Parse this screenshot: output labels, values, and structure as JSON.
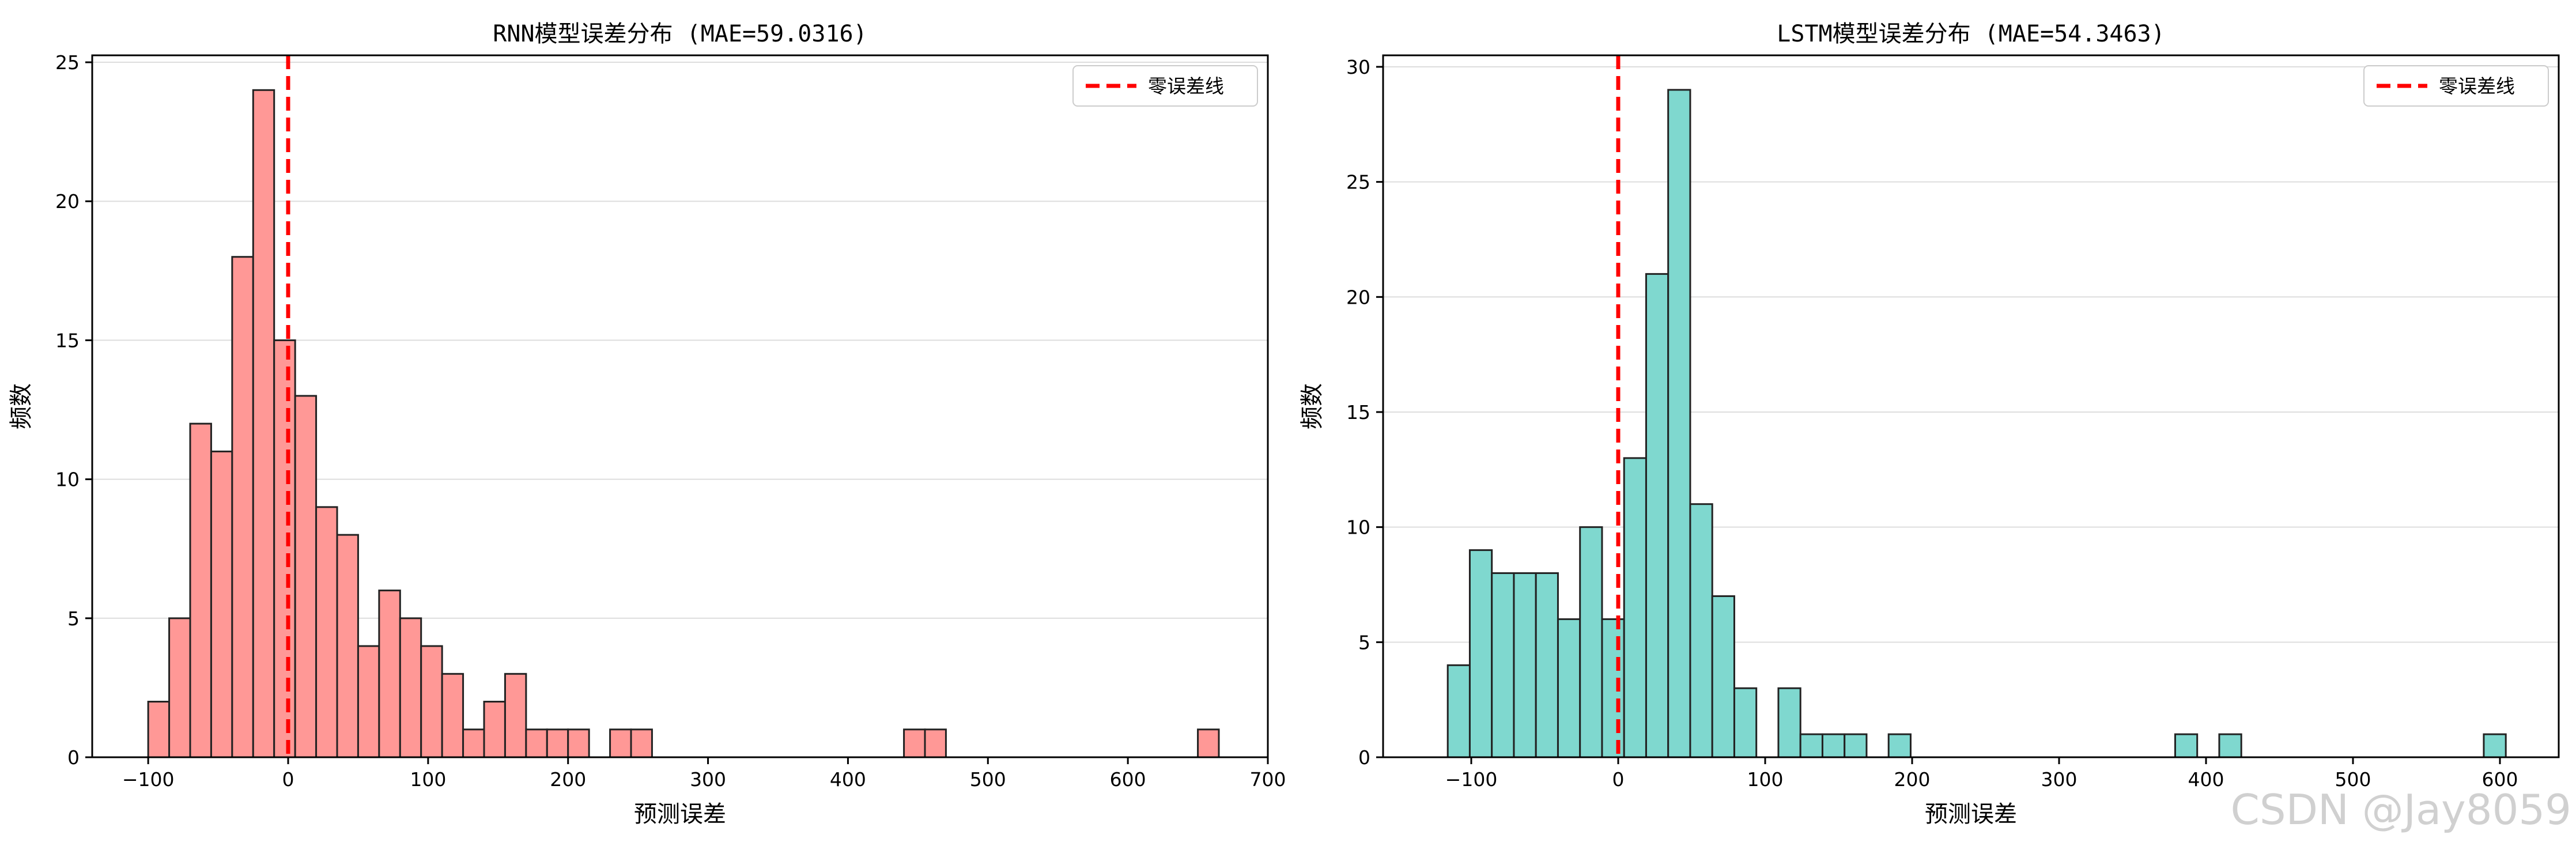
{
  "chart_data": [
    {
      "type": "bar",
      "title": "RNN模型误差分布 (MAE=59.0316)",
      "xlabel": "预测误差",
      "ylabel": "频数",
      "xlim": [
        -140,
        700
      ],
      "ylim": [
        0,
        25.25
      ],
      "xticks": [
        -100,
        0,
        100,
        200,
        300,
        400,
        500,
        600,
        700
      ],
      "yticks": [
        0,
        5,
        10,
        15,
        20,
        25
      ],
      "grid": "y",
      "legend_position": "top-right",
      "legend_label": "零误差线",
      "reference_line_x": 0,
      "bar_color": "#ff9896",
      "reference_color": "#ff0000",
      "bin_edges": [
        -100,
        -85,
        -70,
        -55,
        -40,
        -25,
        -10,
        5,
        20,
        35,
        50,
        65,
        80,
        95,
        110,
        125,
        140,
        155,
        170,
        185,
        200,
        215,
        230,
        245,
        260,
        275,
        290,
        305,
        320,
        335,
        350,
        365,
        380,
        395,
        410,
        425,
        440,
        455,
        470,
        485,
        500,
        515,
        530,
        545,
        560,
        575,
        590,
        605,
        620,
        635,
        650,
        665
      ],
      "values": [
        2,
        5,
        12,
        11,
        18,
        24,
        15,
        13,
        9,
        8,
        4,
        6,
        5,
        4,
        3,
        1,
        2,
        3,
        1,
        1,
        1,
        0,
        1,
        1,
        0,
        0,
        0,
        0,
        0,
        0,
        0,
        0,
        0,
        0,
        0,
        0,
        1,
        1,
        0,
        0,
        0,
        0,
        0,
        0,
        0,
        0,
        0,
        0,
        0,
        0,
        1
      ]
    },
    {
      "type": "bar",
      "title": "LSTM模型误差分布 (MAE=54.3463)",
      "xlabel": "预测误差",
      "ylabel": "频数",
      "xlim": [
        -160,
        640
      ],
      "ylim": [
        0,
        30.5
      ],
      "xticks": [
        -100,
        0,
        100,
        200,
        300,
        400,
        500,
        600
      ],
      "yticks": [
        0,
        5,
        10,
        15,
        20,
        25,
        30
      ],
      "grid": "y",
      "legend_position": "top-right",
      "legend_label": "零误差线",
      "reference_line_x": 0,
      "bar_color": "#7fd8cf",
      "reference_color": "#ff0000",
      "bin_edges": [
        -116,
        -101,
        -86,
        -71,
        -56,
        -41,
        -26,
        -11,
        4,
        19,
        34,
        49,
        64,
        79,
        94,
        109,
        124,
        139,
        154,
        169,
        184,
        199,
        214,
        229,
        244,
        259,
        274,
        289,
        304,
        319,
        334,
        349,
        364,
        379,
        394,
        409,
        424,
        439,
        454,
        469,
        484,
        499,
        514,
        529,
        544,
        559,
        574,
        589,
        604
      ],
      "values": [
        4,
        9,
        8,
        8,
        8,
        6,
        10,
        6,
        13,
        21,
        29,
        11,
        7,
        3,
        0,
        3,
        1,
        1,
        1,
        0,
        1,
        0,
        0,
        0,
        0,
        0,
        0,
        0,
        0,
        0,
        0,
        0,
        0,
        1,
        0,
        1,
        0,
        0,
        0,
        0,
        0,
        0,
        0,
        0,
        0,
        0,
        0,
        1
      ]
    }
  ],
  "watermark": "CSDN @Jay8059"
}
